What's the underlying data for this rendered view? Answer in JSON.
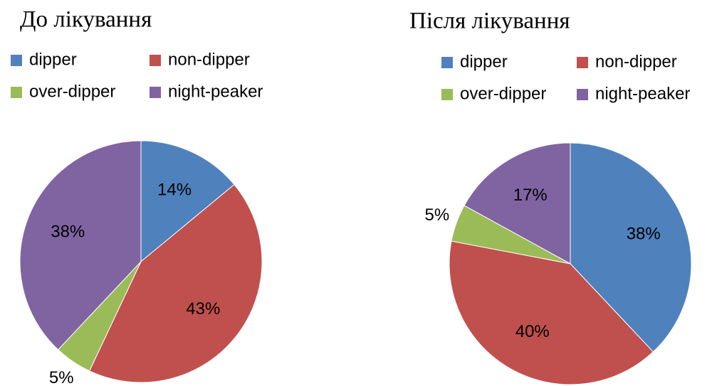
{
  "chart_data": [
    {
      "type": "pie",
      "title": "До лікування",
      "categories": [
        "dipper",
        "non-dipper",
        "over-dipper",
        "night-peaker"
      ],
      "values": [
        14,
        43,
        5,
        38
      ],
      "value_labels": [
        "14%",
        "43%",
        "5%",
        "38%"
      ],
      "colors": [
        "#4f81bd",
        "#c0504d",
        "#9bbb59",
        "#8064a2"
      ]
    },
    {
      "type": "pie",
      "title": "Після лікування",
      "categories": [
        "dipper",
        "non-dipper",
        "over-dipper",
        "night-peaker"
      ],
      "values": [
        38,
        40,
        5,
        17
      ],
      "value_labels": [
        "38%",
        "40%",
        "5%",
        "17%"
      ],
      "colors": [
        "#4f81bd",
        "#c0504d",
        "#9bbb59",
        "#8064a2"
      ]
    }
  ]
}
